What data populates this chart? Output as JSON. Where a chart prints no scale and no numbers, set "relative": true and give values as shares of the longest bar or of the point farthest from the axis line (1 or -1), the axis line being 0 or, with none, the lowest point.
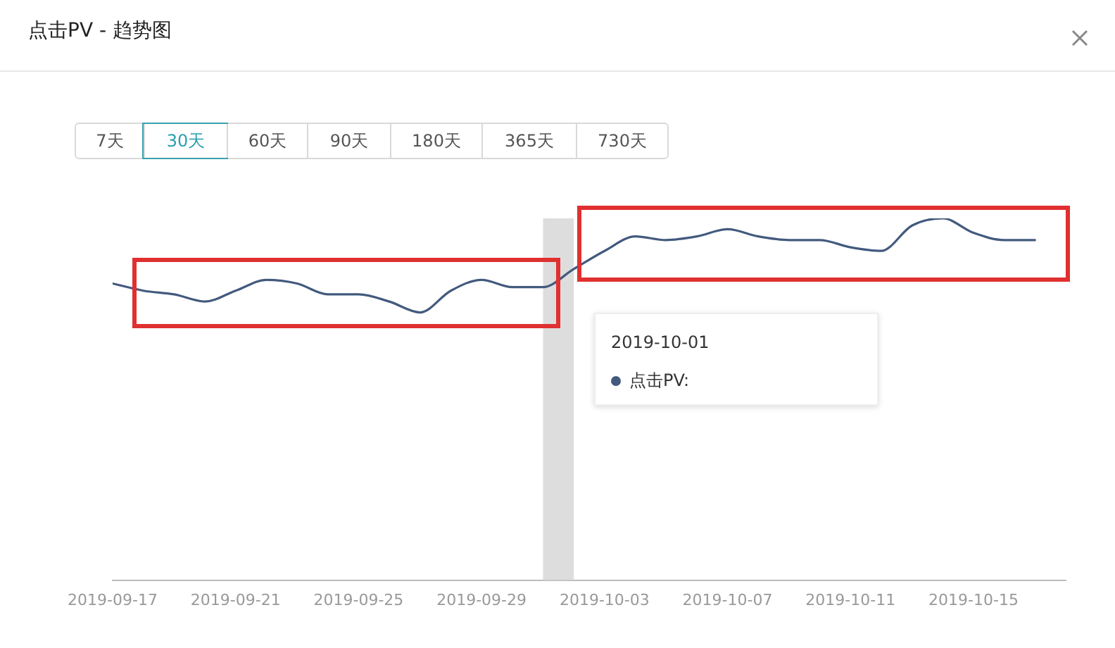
{
  "chart_data": {
    "type": "line",
    "title": "点击PV - 趋势图",
    "relative": true,
    "x": [
      "2019-09-17",
      "2019-09-18",
      "2019-09-19",
      "2019-09-20",
      "2019-09-21",
      "2019-09-22",
      "2019-09-23",
      "2019-09-24",
      "2019-09-25",
      "2019-09-26",
      "2019-09-27",
      "2019-09-28",
      "2019-09-29",
      "2019-09-30",
      "2019-10-01",
      "2019-10-02",
      "2019-10-03",
      "2019-10-04",
      "2019-10-05",
      "2019-10-06",
      "2019-10-07",
      "2019-10-08",
      "2019-10-09",
      "2019-10-10",
      "2019-10-11",
      "2019-10-12",
      "2019-10-13",
      "2019-10-14",
      "2019-10-15",
      "2019-10-16",
      "2019-10-17"
    ],
    "series": [
      {
        "name": "点击PV:",
        "color": "#435a7e",
        "values": [
          0.82,
          0.8,
          0.79,
          0.77,
          0.8,
          0.83,
          0.82,
          0.79,
          0.79,
          0.77,
          0.74,
          0.8,
          0.83,
          0.81,
          0.81,
          0.86,
          0.91,
          0.95,
          0.94,
          0.95,
          0.97,
          0.95,
          0.94,
          0.94,
          0.92,
          0.91,
          0.98,
          1,
          0.96,
          0.94,
          0.94
        ]
      }
    ],
    "xlim": [
      "2019-09-17",
      "2019-10-18"
    ],
    "xticks": [
      "2019-09-17",
      "2019-09-21",
      "2019-09-25",
      "2019-09-29",
      "2019-10-03",
      "2019-10-07",
      "2019-10-11",
      "2019-10-15"
    ],
    "bands": [
      {
        "axis": "x",
        "from": "2019-10-01",
        "to": "2019-10-02",
        "color": "#dddddd"
      }
    ],
    "annotations": [
      "7天",
      "30天",
      "60天",
      "90天",
      "180天",
      "365天",
      "730天",
      "2019-10-01"
    ],
    "marker": "none",
    "line_style": "solid",
    "legend": "right",
    "grid": false
  }
}
